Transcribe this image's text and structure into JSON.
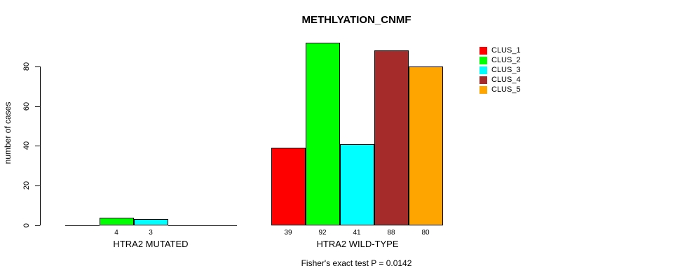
{
  "chart_data": {
    "type": "bar",
    "title": "METHLYATION_CNMF",
    "ylabel": "number of cases",
    "xlabel": "",
    "groups": [
      "HTRA2 MUTATED",
      "HTRA2 WILD-TYPE"
    ],
    "series": [
      {
        "name": "CLUS_1",
        "color": "#FF0000",
        "values": [
          0,
          39
        ]
      },
      {
        "name": "CLUS_2",
        "color": "#00FF00",
        "values": [
          4,
          92
        ]
      },
      {
        "name": "CLUS_3",
        "color": "#00FFFF",
        "values": [
          3,
          41
        ]
      },
      {
        "name": "CLUS_4",
        "color": "#A52A2A",
        "values": [
          0,
          88
        ]
      },
      {
        "name": "CLUS_5",
        "color": "#FFA500",
        "values": [
          0,
          80
        ]
      }
    ],
    "yticks": [
      0,
      20,
      40,
      60,
      80
    ],
    "ylim": [
      0,
      93
    ],
    "grid": false,
    "legend_position": "right",
    "bar_border_color": "#000000",
    "value_labels_shown_for_nonzero_only": true,
    "annotation": "Fisher's exact test P = 0.0142"
  }
}
